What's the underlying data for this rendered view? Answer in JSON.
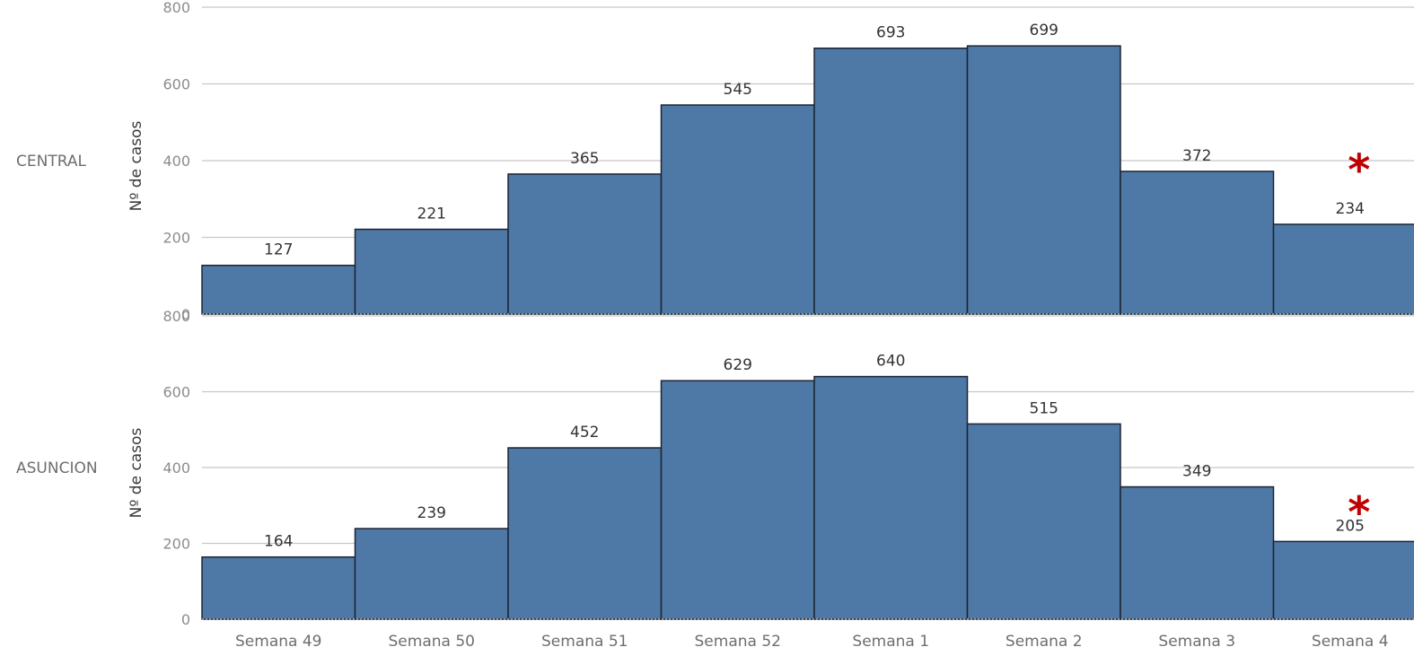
{
  "chart_data": {
    "type": "bar",
    "categories": [
      "Semana 49",
      "Semana 50",
      "Semana 51",
      "Semana 52",
      "Semana 1",
      "Semana 2",
      "Semana 3",
      "Semana 4"
    ],
    "ylabel": "Nº de casos",
    "ylim": [
      0,
      800
    ],
    "yticks": [
      0,
      200,
      400,
      600,
      800
    ],
    "grid": true,
    "bar_color": "#4e78a6",
    "marker_color": "#c00000",
    "series": [
      {
        "name": "CENTRAL",
        "values": [
          127,
          221,
          365,
          545,
          693,
          699,
          372,
          234
        ],
        "marker": {
          "symbol": "*",
          "category": "Semana 4"
        }
      },
      {
        "name": "ASUNCION",
        "values": [
          164,
          239,
          452,
          629,
          640,
          515,
          349,
          205
        ],
        "marker": {
          "symbol": "*",
          "category": "Semana 4"
        }
      }
    ]
  }
}
